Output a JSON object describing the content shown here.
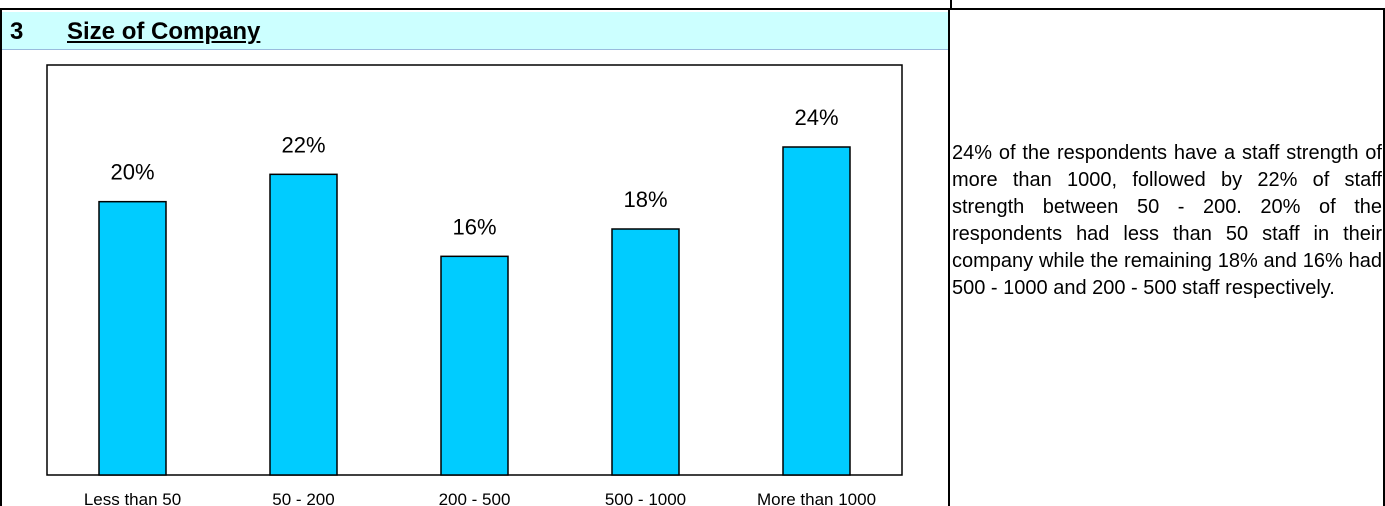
{
  "section": {
    "number": "3",
    "title": "Size of Company"
  },
  "chart_data": {
    "type": "bar",
    "categories": [
      "Less than 50",
      "50 - 200",
      "200 - 500",
      "500 - 1000",
      "More than 1000"
    ],
    "values": [
      20,
      22,
      16,
      18,
      24
    ],
    "data_labels": [
      "20%",
      "22%",
      "16%",
      "18%",
      "24%"
    ],
    "ylim": [
      0,
      30
    ],
    "grid": false,
    "title": "",
    "xlabel": "",
    "ylabel": "",
    "bar_color": "#00ccff",
    "bar_stroke": "#000000"
  },
  "description": "24% of the respondents have a staff strength of more than 1000, followed by 22% of staff strength between 50 - 200. 20% of the respondents had less than 50 staff in their company while the remaining 18% and 16% had 500 - 1000 and 200 - 500 staff respectively."
}
